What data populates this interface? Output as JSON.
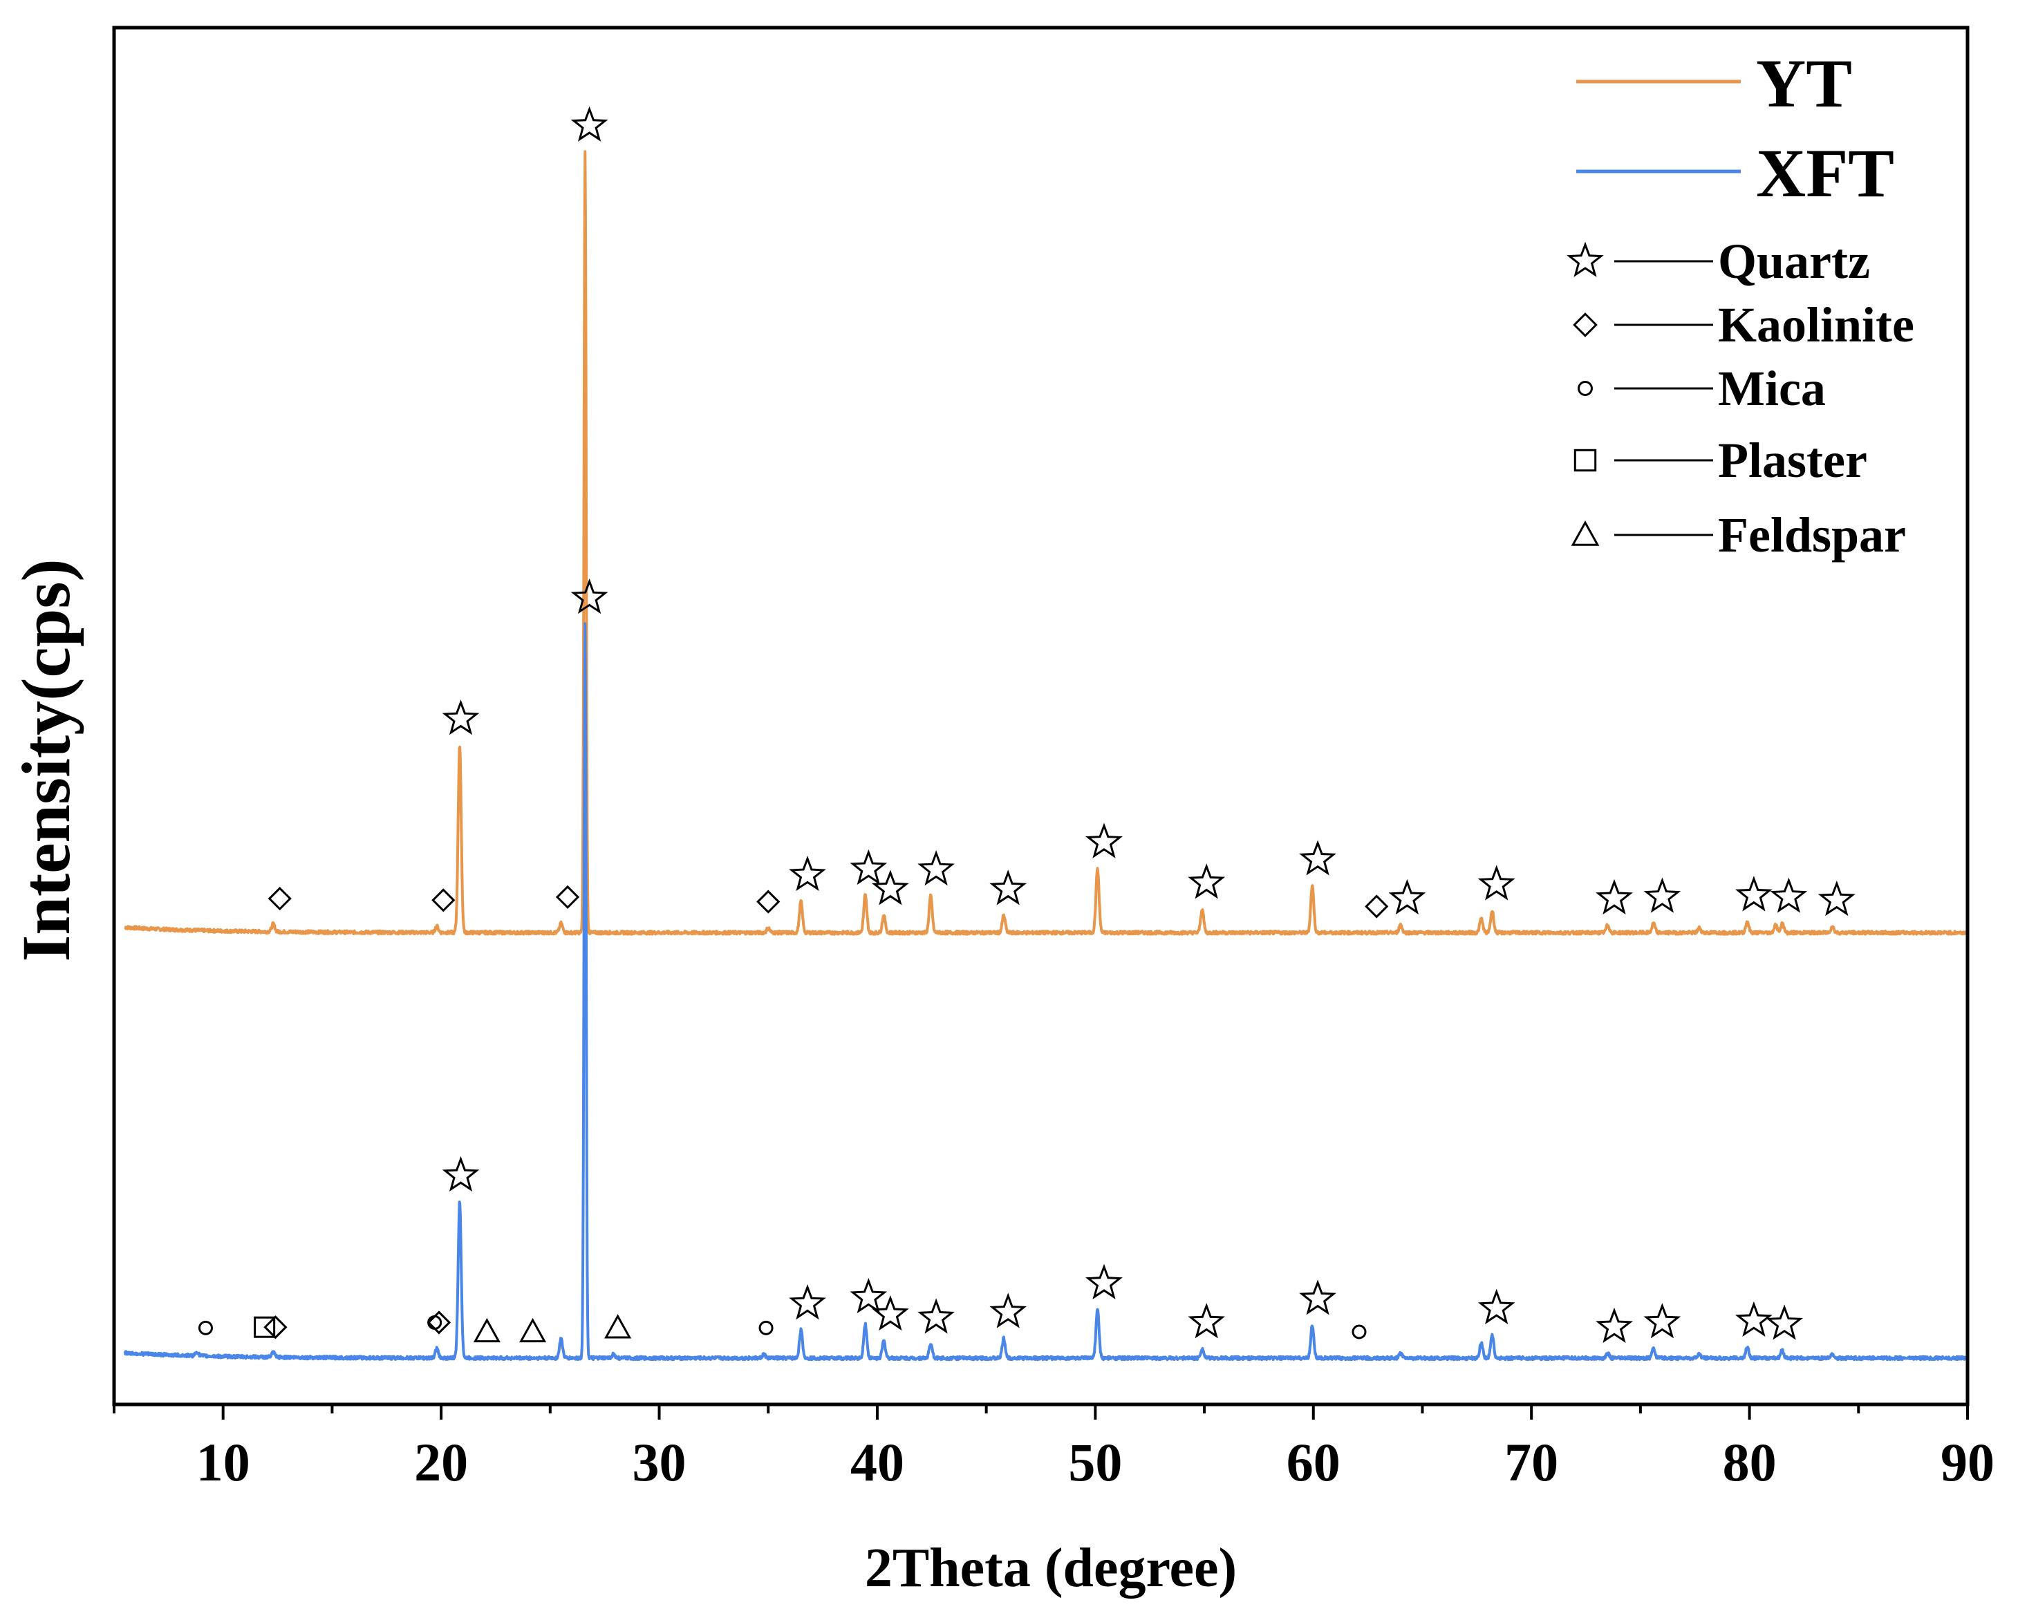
{
  "chart_data": {
    "type": "line",
    "title": "",
    "xlabel": "2Theta (degree)",
    "ylabel": "Intensity(cps)",
    "xlim": [
      5,
      90
    ],
    "xticks": [
      10,
      20,
      30,
      40,
      50,
      60,
      70,
      80,
      90
    ],
    "yticks_shown": false,
    "legend_position": "top-right",
    "series": [
      {
        "name": "YT",
        "color": "#E8964A",
        "baseline": 0.545,
        "peaks": [
          {
            "x": 12.3,
            "h": 0.01
          },
          {
            "x": 19.8,
            "h": 0.008
          },
          {
            "x": 20.85,
            "h": 0.24
          },
          {
            "x": 25.5,
            "h": 0.012
          },
          {
            "x": 26.6,
            "h": 1.0
          },
          {
            "x": 35.0,
            "h": 0.006
          },
          {
            "x": 36.5,
            "h": 0.04
          },
          {
            "x": 39.45,
            "h": 0.048
          },
          {
            "x": 40.3,
            "h": 0.022
          },
          {
            "x": 42.45,
            "h": 0.047
          },
          {
            "x": 45.8,
            "h": 0.022
          },
          {
            "x": 50.1,
            "h": 0.082
          },
          {
            "x": 54.9,
            "h": 0.03
          },
          {
            "x": 59.95,
            "h": 0.06
          },
          {
            "x": 64.0,
            "h": 0.01
          },
          {
            "x": 67.7,
            "h": 0.018
          },
          {
            "x": 68.2,
            "h": 0.028
          },
          {
            "x": 73.5,
            "h": 0.01
          },
          {
            "x": 75.6,
            "h": 0.012
          },
          {
            "x": 77.7,
            "h": 0.006
          },
          {
            "x": 79.9,
            "h": 0.014
          },
          {
            "x": 81.2,
            "h": 0.01
          },
          {
            "x": 81.5,
            "h": 0.012
          },
          {
            "x": 83.8,
            "h": 0.008
          }
        ]
      },
      {
        "name": "XFT",
        "color": "#4A86E8",
        "baseline": 0.0,
        "peaks": [
          {
            "x": 8.8,
            "h": 0.005
          },
          {
            "x": 12.3,
            "h": 0.006
          },
          {
            "x": 19.8,
            "h": 0.012
          },
          {
            "x": 20.85,
            "h": 0.2
          },
          {
            "x": 25.5,
            "h": 0.025
          },
          {
            "x": 26.6,
            "h": 0.94
          },
          {
            "x": 27.9,
            "h": 0.005
          },
          {
            "x": 34.8,
            "h": 0.005
          },
          {
            "x": 36.5,
            "h": 0.036
          },
          {
            "x": 39.45,
            "h": 0.044
          },
          {
            "x": 40.3,
            "h": 0.022
          },
          {
            "x": 42.45,
            "h": 0.018
          },
          {
            "x": 45.8,
            "h": 0.025
          },
          {
            "x": 50.1,
            "h": 0.062
          },
          {
            "x": 54.9,
            "h": 0.012
          },
          {
            "x": 59.95,
            "h": 0.042
          },
          {
            "x": 64.0,
            "h": 0.006
          },
          {
            "x": 67.7,
            "h": 0.02
          },
          {
            "x": 68.2,
            "h": 0.03
          },
          {
            "x": 73.5,
            "h": 0.006
          },
          {
            "x": 75.6,
            "h": 0.012
          },
          {
            "x": 77.7,
            "h": 0.005
          },
          {
            "x": 79.9,
            "h": 0.014
          },
          {
            "x": 81.5,
            "h": 0.01
          },
          {
            "x": 83.8,
            "h": 0.005
          }
        ]
      }
    ],
    "phase_annotations": [
      {
        "series": "YT",
        "phase": "Quartz",
        "x": [
          20.9,
          26.8,
          36.8,
          39.6,
          40.6,
          42.7,
          46.0,
          50.4,
          55.1,
          60.2,
          64.3,
          68.4,
          73.8,
          76.0,
          80.2,
          81.8,
          84.0
        ]
      },
      {
        "series": "YT",
        "phase": "Kaolinite",
        "x": [
          12.6,
          20.1,
          25.8,
          35.0,
          62.9
        ]
      },
      {
        "series": "XFT",
        "phase": "Quartz",
        "x": [
          20.9,
          26.8,
          36.8,
          39.6,
          40.6,
          42.7,
          46.0,
          50.4,
          55.1,
          60.2,
          68.4,
          73.8,
          76.0,
          80.2,
          81.6
        ]
      },
      {
        "series": "XFT",
        "phase": "Kaolinite",
        "x": [
          12.4,
          19.9
        ]
      },
      {
        "series": "XFT",
        "phase": "Mica",
        "x": [
          9.2,
          19.7,
          34.9,
          62.1
        ]
      },
      {
        "series": "XFT",
        "phase": "Plaster",
        "x": [
          11.9
        ]
      },
      {
        "series": "XFT",
        "phase": "Feldspar",
        "x": [
          22.1,
          24.2,
          28.1
        ]
      }
    ],
    "legend": {
      "series": [
        "YT",
        "XFT"
      ],
      "phases": [
        {
          "label": "Quartz",
          "symbol": "star"
        },
        {
          "label": "Kaolinite",
          "symbol": "diamond"
        },
        {
          "label": "Mica",
          "symbol": "circle"
        },
        {
          "label": "Plaster",
          "symbol": "square"
        },
        {
          "label": "Feldspar",
          "symbol": "triangle"
        }
      ]
    }
  }
}
